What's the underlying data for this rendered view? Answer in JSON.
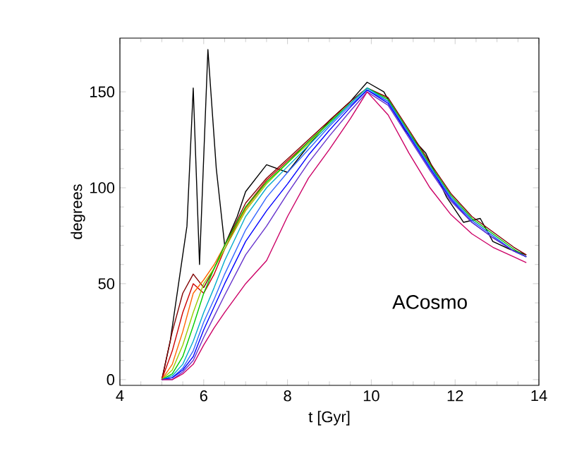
{
  "chart_data": {
    "type": "line",
    "xlabel": "t [Gyr]",
    "ylabel": "degrees",
    "xlim": [
      4,
      14
    ],
    "ylim": [
      -3,
      178
    ],
    "xticks": [
      4,
      6,
      8,
      10,
      12,
      14
    ],
    "yticks": [
      0,
      50,
      100,
      150
    ],
    "grid": false,
    "marker": "none",
    "line_style": "solid",
    "annotations": [
      "ACosmo"
    ],
    "x": [
      5.0,
      5.25,
      5.5,
      5.75,
      6.0,
      6.25,
      6.5,
      7.0,
      7.5,
      8.0,
      8.5,
      9.0,
      9.5,
      9.9,
      10.4,
      10.9,
      11.4,
      11.9,
      12.4,
      12.9,
      13.4,
      13.7
    ],
    "series": [
      {
        "color": "#000000",
        "x": [
          5.0,
          5.2,
          5.4,
          5.6,
          5.75,
          5.9,
          6.1,
          6.3,
          6.5,
          6.8,
          7.0,
          7.5,
          8.0,
          8.5,
          9.0,
          9.5,
          9.9,
          10.3,
          10.8,
          11.3,
          11.8,
          12.2,
          12.6,
          12.9,
          13.3,
          13.7
        ],
        "values": [
          0,
          20,
          50,
          80,
          152,
          60,
          172,
          110,
          70,
          85,
          98,
          112,
          108,
          122,
          135,
          145,
          155,
          150,
          130,
          118,
          95,
          82,
          84,
          72,
          68,
          65
        ]
      },
      {
        "color": "#800000",
        "values": [
          0,
          25,
          45,
          55,
          48,
          58,
          70,
          92,
          105,
          115,
          125,
          135,
          145,
          152,
          147,
          130,
          113,
          97,
          85,
          77,
          69,
          65
        ]
      },
      {
        "color": "#cc0000",
        "values": [
          0,
          15,
          35,
          50,
          45,
          55,
          68,
          90,
          104,
          114,
          124,
          134,
          null,
          null,
          null,
          null,
          null,
          null,
          null,
          null,
          null,
          null
        ]
      },
      {
        "color": "#ff6600",
        "values": [
          0,
          8,
          25,
          45,
          52,
          60,
          70,
          89,
          103,
          null,
          null,
          null,
          null,
          null,
          null,
          null,
          null,
          null,
          null,
          null,
          null,
          null
        ]
      },
      {
        "color": "#99cc00",
        "values": [
          0,
          5,
          18,
          35,
          50,
          58,
          68,
          88,
          102,
          113,
          123,
          134,
          144,
          null,
          null,
          null,
          null,
          null,
          null,
          null,
          null,
          null
        ]
      },
      {
        "color": "#00cc00",
        "values": [
          0,
          3,
          12,
          28,
          45,
          58,
          70,
          90,
          103,
          113,
          124,
          134,
          144,
          152,
          146,
          129,
          112,
          96,
          84,
          76,
          68,
          64
        ]
      },
      {
        "color": "#00aacc",
        "values": [
          0,
          2,
          8,
          20,
          35,
          48,
          62,
          85,
          100,
          111,
          122,
          133,
          144,
          152,
          145,
          128,
          111,
          95,
          83,
          75,
          67,
          64
        ]
      },
      {
        "color": "#3366ff",
        "values": [
          0,
          1,
          6,
          15,
          30,
          42,
          55,
          78,
          95,
          108,
          120,
          132,
          143,
          151,
          145,
          128,
          111,
          95,
          83,
          75,
          67,
          64
        ]
      },
      {
        "color": "#0000ff",
        "values": [
          0,
          1,
          5,
          12,
          26,
          38,
          50,
          72,
          88,
          102,
          117,
          130,
          142,
          151,
          144,
          127,
          110,
          94,
          82,
          74,
          67,
          64
        ]
      },
      {
        "color": "#6633cc",
        "values": [
          0,
          0,
          4,
          10,
          22,
          33,
          44,
          65,
          80,
          97,
          113,
          127,
          140,
          150,
          143,
          126,
          109,
          93,
          82,
          74,
          67,
          64
        ]
      },
      {
        "color": "#cc0066",
        "values": [
          0,
          0,
          3,
          8,
          18,
          27,
          35,
          50,
          62,
          85,
          105,
          120,
          136,
          150,
          138,
          118,
          100,
          86,
          76,
          69,
          64,
          61
        ]
      }
    ]
  }
}
